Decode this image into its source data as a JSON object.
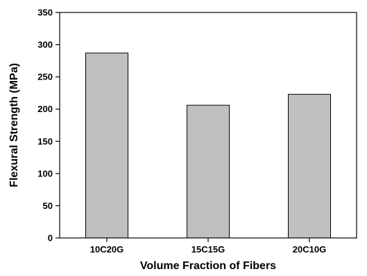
{
  "chart_data": {
    "type": "bar",
    "title": "",
    "xlabel": "Volume Fraction of Fibers",
    "ylabel": "Flexural Strength (MPa)",
    "categories": [
      "10C20G",
      "15C15G",
      "20C10G"
    ],
    "values": [
      287,
      206,
      223
    ],
    "ylim": [
      0,
      350
    ],
    "yticks": [
      0,
      50,
      100,
      150,
      200,
      250,
      300,
      350
    ],
    "grid": false,
    "legend": "none",
    "bar_color": "#c0c0c0",
    "bar_edge_color": "#000000"
  }
}
